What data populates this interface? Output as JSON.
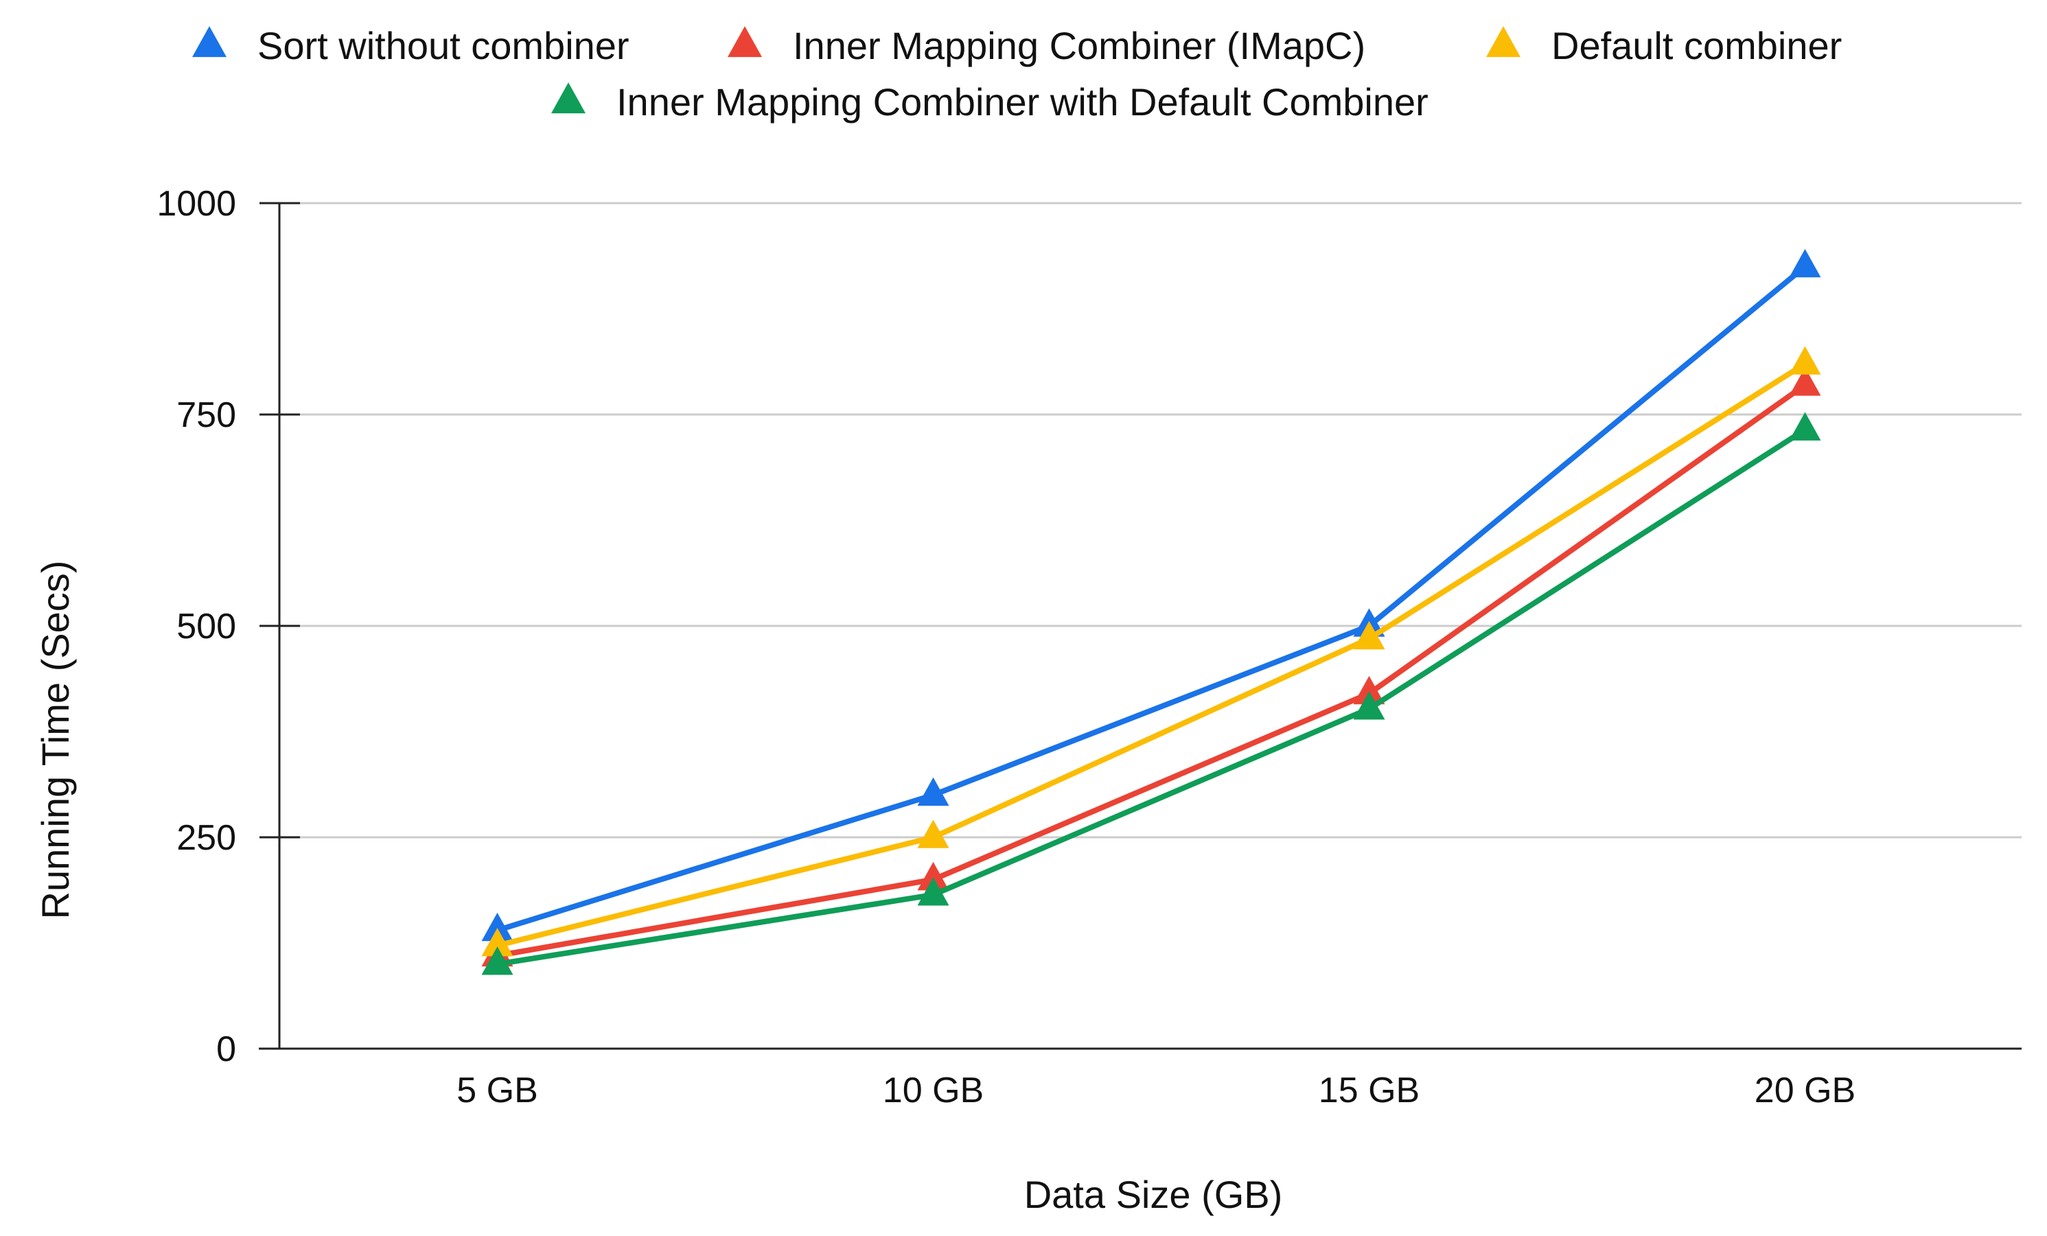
{
  "chart_data": {
    "type": "line",
    "title": "",
    "xlabel": "Data Size (GB)",
    "ylabel": "Running Time (Secs)",
    "categories": [
      "5 GB",
      "10 GB",
      "15 GB",
      "20 GB"
    ],
    "ylim": [
      0,
      1000
    ],
    "yticks": [
      0,
      250,
      500,
      750,
      1000
    ],
    "ytick_labels": [
      "0",
      "250",
      "500",
      "750",
      "1000"
    ],
    "grid": true,
    "legend_position": "top",
    "marker": "triangle",
    "series": [
      {
        "name": "Sort without combiner",
        "color": "#1a73e8",
        "values": [
          140,
          300,
          500,
          925
        ]
      },
      {
        "name": "Inner Mapping Combiner (IMapC)",
        "color": "#ea4335",
        "values": [
          110,
          200,
          420,
          785
        ]
      },
      {
        "name": "Default combiner",
        "color": "#fbbc04",
        "values": [
          122,
          250,
          485,
          810
        ]
      },
      {
        "name": "Inner Mapping Combiner with Default Combiner",
        "color": "#0f9d58",
        "values": [
          100,
          182,
          402,
          732
        ]
      }
    ]
  }
}
